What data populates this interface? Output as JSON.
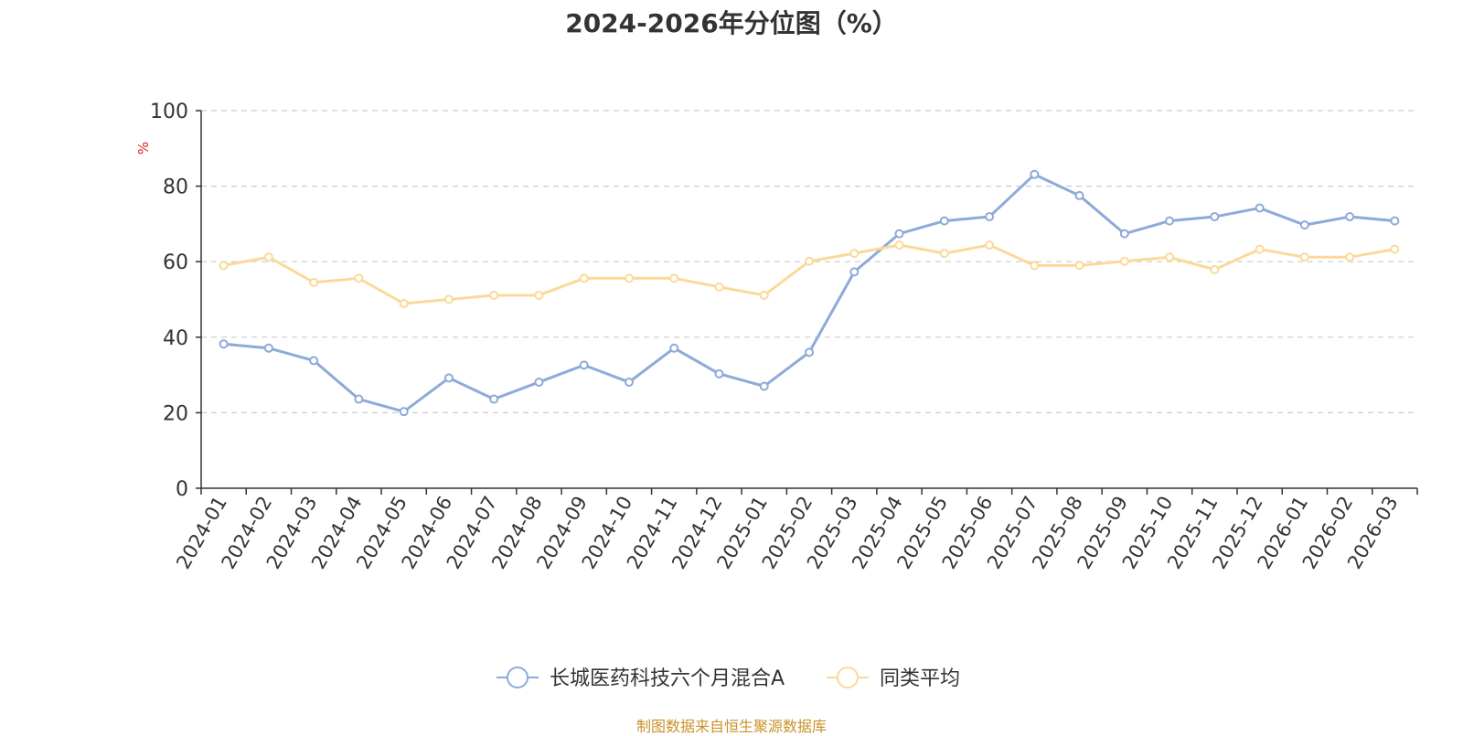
{
  "chart_data": {
    "type": "line",
    "title": "2024-2026年分位图（%）",
    "ylabel": "%",
    "xlabel": "",
    "ylim": [
      0,
      100
    ],
    "yticks": [
      0,
      20,
      40,
      60,
      80,
      100
    ],
    "grid": true,
    "legend_position": "bottom-center",
    "categories": [
      "2024-01",
      "2024-02",
      "2024-03",
      "2024-04",
      "2024-05",
      "2024-06",
      "2024-07",
      "2024-08",
      "2024-09",
      "2024-10",
      "2024-11",
      "2024-12",
      "2025-01",
      "2025-02",
      "2025-03",
      "2025-04",
      "2025-05",
      "2025-06",
      "2025-07",
      "2025-08",
      "2025-09",
      "2025-10",
      "2025-11",
      "2025-12",
      "2026-01",
      "2026-02",
      "2026-03"
    ],
    "series": [
      {
        "name": "长城医药科技六个月混合A",
        "color": "#8eaad8",
        "values": [
          38.2,
          37.1,
          33.8,
          23.6,
          20.3,
          29.2,
          23.6,
          28.1,
          32.6,
          28.1,
          37.1,
          30.3,
          27.0,
          36.0,
          57.3,
          67.4,
          70.8,
          71.9,
          83.1,
          77.5,
          67.4,
          70.8,
          71.9,
          74.2,
          69.7,
          71.9,
          70.8
        ]
      },
      {
        "name": "同类平均",
        "color": "#fbd99a",
        "values": [
          59.0,
          61.2,
          54.5,
          55.6,
          48.9,
          50.0,
          51.1,
          51.1,
          55.6,
          55.6,
          55.6,
          53.3,
          51.1,
          60.1,
          62.2,
          64.4,
          62.2,
          64.4,
          59.0,
          59.0,
          60.1,
          61.2,
          57.9,
          63.3,
          61.2,
          61.2,
          63.3
        ]
      }
    ]
  },
  "footer": {
    "source": "制图数据来自恒生聚源数据库"
  }
}
